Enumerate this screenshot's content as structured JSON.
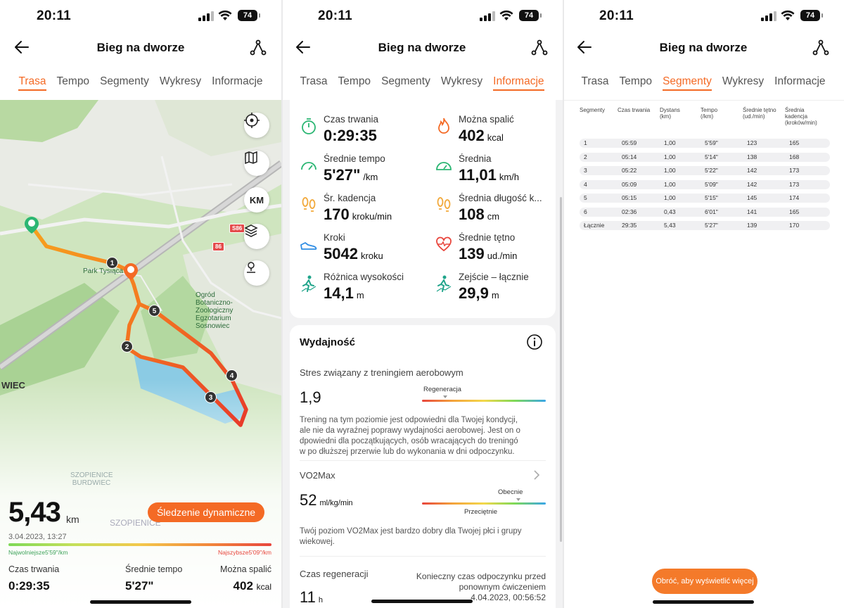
{
  "status": {
    "time": "20:11",
    "battery": "74"
  },
  "header": {
    "title": "Bieg na dworze"
  },
  "tabs": [
    "Trasa",
    "Tempo",
    "Segmenty",
    "Wykresy",
    "Informacje"
  ],
  "map": {
    "buttons": {
      "km": "KM"
    },
    "labels": {
      "park": "Park Tysiąca",
      "garden": "Ogród Botaniczno-Zoologiczny Egzotarium Sosnowiec",
      "city": "WIEC",
      "district1": "SZOPIENICE BURDWIEC",
      "district2": "SZOPIENICE",
      "road1": "S86",
      "road2": "86"
    },
    "pins": [
      "1",
      "2",
      "3",
      "4",
      "5"
    ]
  },
  "summary": {
    "distance": "5,43",
    "distance_unit": "km",
    "dynamic_button": "Śledzenie dynamiczne",
    "date": "3.04.2023, 13:27",
    "slowest": "Najwolniejsze5'59\"/km",
    "fastest": "Najszybsze5'09\"/km",
    "stats": [
      {
        "label": "Czas trwania",
        "value": "0:29:35",
        "unit": ""
      },
      {
        "label": "Średnie tempo",
        "value": "5'27\"",
        "unit": ""
      },
      {
        "label": "Można spalić",
        "value": "402",
        "unit": "kcal"
      }
    ]
  },
  "info": {
    "stats": [
      {
        "label": "Czas trwania",
        "value": "0:29:35",
        "unit": "",
        "icon": "stopwatch-icon",
        "color": "#2bb673"
      },
      {
        "label": "Można spalić",
        "value": "402",
        "unit": "kcal",
        "icon": "flame-icon",
        "color": "#f46a25"
      },
      {
        "label": "Średnie tempo",
        "value": "5'27\"",
        "unit": "/km",
        "icon": "speedometer-icon",
        "color": "#2bb673"
      },
      {
        "label": "Średnia",
        "value": "11,01",
        "unit": "km/h",
        "icon": "gauge-icon",
        "color": "#2bb673"
      },
      {
        "label": "Śr. kadencja",
        "value": "170",
        "unit": "kroku/min",
        "icon": "footprints-icon",
        "color": "#f2a93b"
      },
      {
        "label": "Średnia długość k...",
        "value": "108",
        "unit": "cm",
        "icon": "footprints-icon",
        "color": "#f2a93b"
      },
      {
        "label": "Kroki",
        "value": "5042",
        "unit": "kroku",
        "icon": "shoe-icon",
        "color": "#2f8de4"
      },
      {
        "label": "Średnie tętno",
        "value": "139",
        "unit": "ud./min",
        "icon": "heart-rate-icon",
        "color": "#e8453c"
      },
      {
        "label": "Różnica wysokości",
        "value": "14,1",
        "unit": "m",
        "icon": "hiker-icon",
        "color": "#1fa48a"
      },
      {
        "label": "Zejście – łącznie",
        "value": "29,9",
        "unit": "m",
        "icon": "hiker-icon",
        "color": "#1fa48a"
      }
    ],
    "performance": {
      "title": "Wydajność",
      "aerobic_label": "Stres związany z treningiem aerobowym",
      "aerobic_value": "1,9",
      "aerobic_zone": "Regeneracja",
      "aerobic_level": 0.19,
      "aerobic_desc": [
        "Trening na tym poziomie jest odpowiedni dla Twojej kondycji,",
        "ale nie da wyraźnej poprawy wydajności aerobowej. Jest on o",
        "dpowiedni dla początkujących, osób wracających do treningó",
        "w po dłuższej przerwie lub do wykonania w dni odpoczynku."
      ],
      "vo2_label": "VO2Max",
      "vo2_value": "52",
      "vo2_unit": "ml/kg/min",
      "vo2_zone_top": "Obecnie",
      "vo2_zone_bottom": "Przeciętnie",
      "vo2_level": 0.78,
      "vo2_desc": [
        "Twój poziom VO2Max jest bardzo dobry dla Twojej płci i grupy",
        " wiekowej."
      ],
      "recovery_label": "Czas regeneracji",
      "recovery_value": "11",
      "recovery_unit": "h",
      "recovery_note": [
        "Konieczny czas odpoczynku przed",
        "ponownym ćwiczeniem",
        "4.04.2023, 00:56:52"
      ]
    }
  },
  "segments": {
    "headers": [
      [
        "Segmenty"
      ],
      [
        "Czas trwania"
      ],
      [
        "Dystans",
        "(km)"
      ],
      [
        "Tempo",
        "(/km)"
      ],
      [
        "Średnie tętno",
        "(ud./min)"
      ],
      [
        "Średnia",
        "kadencja",
        "(kroków/min)"
      ]
    ],
    "rows": [
      [
        "1",
        "05:59",
        "1,00",
        "5'59\"",
        "123",
        "165"
      ],
      [
        "2",
        "05:14",
        "1,00",
        "5'14\"",
        "138",
        "168"
      ],
      [
        "3",
        "05:22",
        "1,00",
        "5'22\"",
        "142",
        "173"
      ],
      [
        "4",
        "05:09",
        "1,00",
        "5'09\"",
        "142",
        "173"
      ],
      [
        "5",
        "05:15",
        "1,00",
        "5'15\"",
        "145",
        "174"
      ],
      [
        "6",
        "02:36",
        "0,43",
        "6'01\"",
        "141",
        "165"
      ],
      [
        "Łącznie",
        "29:35",
        "5,43",
        "5'27\"",
        "139",
        "170"
      ]
    ],
    "rotate_button": "Obróć, aby wyświetlić więcej"
  }
}
